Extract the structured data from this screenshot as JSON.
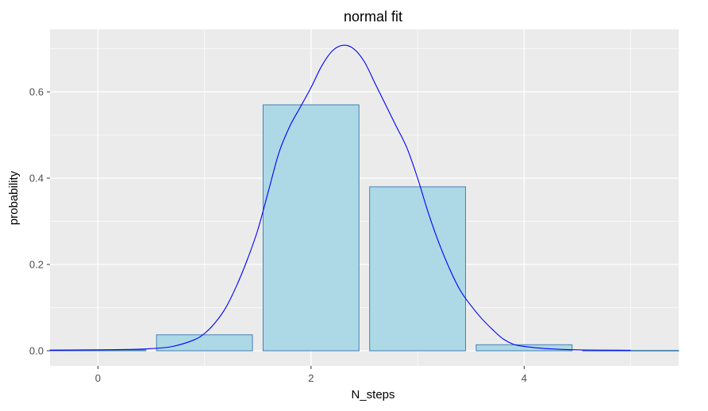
{
  "chart_data": {
    "type": "bar",
    "title": "normal fit",
    "xlabel": "N_steps",
    "ylabel": "probability",
    "xlim": [
      -0.45,
      5.45
    ],
    "ylim": [
      -0.035,
      0.745
    ],
    "x_ticks": [
      0,
      2,
      4
    ],
    "y_ticks": [
      0.0,
      0.2,
      0.4,
      0.6
    ],
    "y_tick_labels": [
      "0.0",
      "0.2",
      "0.4",
      "0.6"
    ],
    "grid": true,
    "legend": "none",
    "bars": {
      "x": [
        0,
        1,
        2,
        3,
        4,
        5
      ],
      "values": [
        0.002,
        0.037,
        0.57,
        0.38,
        0.014,
        0.001
      ],
      "width": 0.9,
      "fill": "#add8e6",
      "stroke": "#4682b4"
    },
    "density_curve": {
      "color": "#0000ff",
      "points": [
        [
          -0.45,
          0.001
        ],
        [
          0.0,
          0.002
        ],
        [
          0.3,
          0.003
        ],
        [
          0.5,
          0.005
        ],
        [
          0.7,
          0.01
        ],
        [
          0.9,
          0.025
        ],
        [
          1.0,
          0.04
        ],
        [
          1.1,
          0.065
        ],
        [
          1.2,
          0.1
        ],
        [
          1.3,
          0.15
        ],
        [
          1.4,
          0.21
        ],
        [
          1.5,
          0.28
        ],
        [
          1.6,
          0.37
        ],
        [
          1.7,
          0.46
        ],
        [
          1.8,
          0.52
        ],
        [
          1.9,
          0.565
        ],
        [
          2.0,
          0.61
        ],
        [
          2.1,
          0.66
        ],
        [
          2.2,
          0.695
        ],
        [
          2.3,
          0.708
        ],
        [
          2.4,
          0.7
        ],
        [
          2.5,
          0.67
        ],
        [
          2.6,
          0.62
        ],
        [
          2.7,
          0.57
        ],
        [
          2.8,
          0.52
        ],
        [
          2.9,
          0.47
        ],
        [
          3.0,
          0.4
        ],
        [
          3.1,
          0.32
        ],
        [
          3.2,
          0.25
        ],
        [
          3.3,
          0.19
        ],
        [
          3.4,
          0.14
        ],
        [
          3.5,
          0.105
        ],
        [
          3.6,
          0.075
        ],
        [
          3.7,
          0.05
        ],
        [
          3.8,
          0.028
        ],
        [
          3.9,
          0.015
        ],
        [
          4.0,
          0.01
        ],
        [
          4.2,
          0.005
        ],
        [
          4.5,
          0.002
        ],
        [
          5.0,
          0.001
        ]
      ]
    }
  }
}
